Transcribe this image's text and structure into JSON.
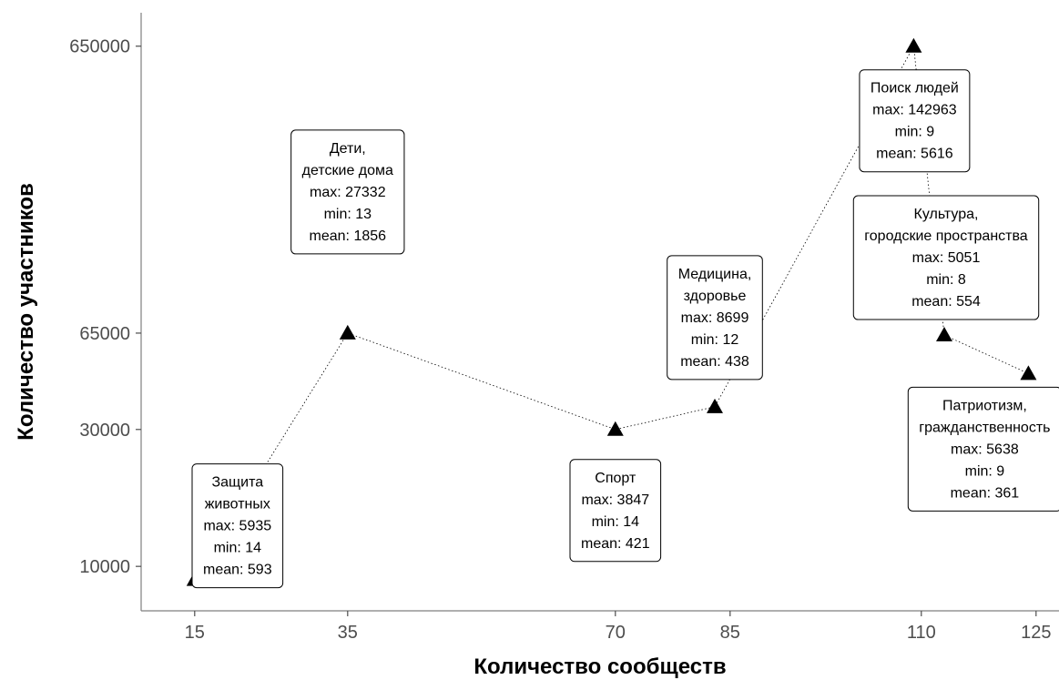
{
  "chart_data": {
    "type": "scatter",
    "title": "",
    "xlabel": "Количество сообществ",
    "ylabel": "Количество участников",
    "x_ticks": [
      15,
      35,
      70,
      85,
      110,
      125
    ],
    "y_ticks": [
      "10000",
      "30000",
      "65000",
      "650000"
    ],
    "x_range": [
      8,
      128
    ],
    "y_scale": "log",
    "y_range": [
      7000,
      850000
    ],
    "grid": false,
    "legend": "none",
    "connector": "dotted",
    "marker": "triangle",
    "colors": {
      "marker": "#000000",
      "axis": "#7f7f7f",
      "ticks": "#4d4d4d"
    },
    "points": [
      {
        "x": 15,
        "y": 9000,
        "lines": [
          "Защита",
          "животных",
          "max: 5935",
          "min: 14",
          "mean: 593"
        ]
      },
      {
        "x": 35,
        "y": 65000,
        "lines": [
          "Дети,",
          "детские дома",
          "max: 27332",
          "min: 13",
          "mean: 1856"
        ]
      },
      {
        "x": 70,
        "y": 30000,
        "lines": [
          "Спорт",
          "max: 3847",
          "min: 14",
          "mean: 421"
        ]
      },
      {
        "x": 83,
        "y": 36000,
        "lines": [
          "Медицина,",
          "здоровье",
          "max: 8699",
          "min: 12",
          "mean: 438"
        ]
      },
      {
        "x": 109,
        "y": 650000,
        "lines": [
          "Поиск людей",
          "max: 142963",
          "min: 9",
          "mean: 5616"
        ]
      },
      {
        "x": 113,
        "y": 64000,
        "lines": [
          "Культура,",
          "городские пространства",
          "max: 5051",
          "min: 8",
          "mean: 554"
        ]
      },
      {
        "x": 124,
        "y": 47000,
        "lines": [
          "Патриотизм,",
          "гражданственность",
          "max: 5638",
          "min: 9",
          "mean: 361"
        ]
      }
    ]
  }
}
